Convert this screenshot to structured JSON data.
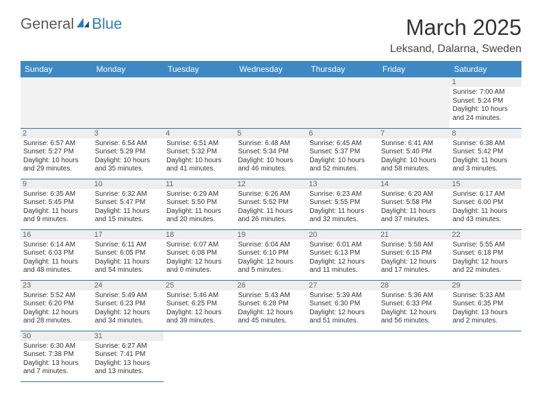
{
  "logo": {
    "text1": "General",
    "text2": "Blue"
  },
  "title": "March 2025",
  "location": "Leksand, Dalarna, Sweden",
  "colors": {
    "header_bg": "#3e89c4",
    "header_text": "#ffffff",
    "border": "#2f6fa8",
    "daynum_bg": "#eeeeee",
    "logo_blue": "#2f7bbf"
  },
  "days_of_week": [
    "Sunday",
    "Monday",
    "Tuesday",
    "Wednesday",
    "Thursday",
    "Friday",
    "Saturday"
  ],
  "weeks": [
    [
      null,
      null,
      null,
      null,
      null,
      null,
      {
        "n": "1",
        "sr": "Sunrise: 7:00 AM",
        "ss": "Sunset: 5:24 PM",
        "dl1": "Daylight: 10 hours",
        "dl2": "and 24 minutes."
      }
    ],
    [
      {
        "n": "2",
        "sr": "Sunrise: 6:57 AM",
        "ss": "Sunset: 5:27 PM",
        "dl1": "Daylight: 10 hours",
        "dl2": "and 29 minutes."
      },
      {
        "n": "3",
        "sr": "Sunrise: 6:54 AM",
        "ss": "Sunset: 5:29 PM",
        "dl1": "Daylight: 10 hours",
        "dl2": "and 35 minutes."
      },
      {
        "n": "4",
        "sr": "Sunrise: 6:51 AM",
        "ss": "Sunset: 5:32 PM",
        "dl1": "Daylight: 10 hours",
        "dl2": "and 41 minutes."
      },
      {
        "n": "5",
        "sr": "Sunrise: 6:48 AM",
        "ss": "Sunset: 5:34 PM",
        "dl1": "Daylight: 10 hours",
        "dl2": "and 46 minutes."
      },
      {
        "n": "6",
        "sr": "Sunrise: 6:45 AM",
        "ss": "Sunset: 5:37 PM",
        "dl1": "Daylight: 10 hours",
        "dl2": "and 52 minutes."
      },
      {
        "n": "7",
        "sr": "Sunrise: 6:41 AM",
        "ss": "Sunset: 5:40 PM",
        "dl1": "Daylight: 10 hours",
        "dl2": "and 58 minutes."
      },
      {
        "n": "8",
        "sr": "Sunrise: 6:38 AM",
        "ss": "Sunset: 5:42 PM",
        "dl1": "Daylight: 11 hours",
        "dl2": "and 3 minutes."
      }
    ],
    [
      {
        "n": "9",
        "sr": "Sunrise: 6:35 AM",
        "ss": "Sunset: 5:45 PM",
        "dl1": "Daylight: 11 hours",
        "dl2": "and 9 minutes."
      },
      {
        "n": "10",
        "sr": "Sunrise: 6:32 AM",
        "ss": "Sunset: 5:47 PM",
        "dl1": "Daylight: 11 hours",
        "dl2": "and 15 minutes."
      },
      {
        "n": "11",
        "sr": "Sunrise: 6:29 AM",
        "ss": "Sunset: 5:50 PM",
        "dl1": "Daylight: 11 hours",
        "dl2": "and 20 minutes."
      },
      {
        "n": "12",
        "sr": "Sunrise: 6:26 AM",
        "ss": "Sunset: 5:52 PM",
        "dl1": "Daylight: 11 hours",
        "dl2": "and 26 minutes."
      },
      {
        "n": "13",
        "sr": "Sunrise: 6:23 AM",
        "ss": "Sunset: 5:55 PM",
        "dl1": "Daylight: 11 hours",
        "dl2": "and 32 minutes."
      },
      {
        "n": "14",
        "sr": "Sunrise: 6:20 AM",
        "ss": "Sunset: 5:58 PM",
        "dl1": "Daylight: 11 hours",
        "dl2": "and 37 minutes."
      },
      {
        "n": "15",
        "sr": "Sunrise: 6:17 AM",
        "ss": "Sunset: 6:00 PM",
        "dl1": "Daylight: 11 hours",
        "dl2": "and 43 minutes."
      }
    ],
    [
      {
        "n": "16",
        "sr": "Sunrise: 6:14 AM",
        "ss": "Sunset: 6:03 PM",
        "dl1": "Daylight: 11 hours",
        "dl2": "and 48 minutes."
      },
      {
        "n": "17",
        "sr": "Sunrise: 6:11 AM",
        "ss": "Sunset: 6:05 PM",
        "dl1": "Daylight: 11 hours",
        "dl2": "and 54 minutes."
      },
      {
        "n": "18",
        "sr": "Sunrise: 6:07 AM",
        "ss": "Sunset: 6:08 PM",
        "dl1": "Daylight: 12 hours",
        "dl2": "and 0 minutes."
      },
      {
        "n": "19",
        "sr": "Sunrise: 6:04 AM",
        "ss": "Sunset: 6:10 PM",
        "dl1": "Daylight: 12 hours",
        "dl2": "and 5 minutes."
      },
      {
        "n": "20",
        "sr": "Sunrise: 6:01 AM",
        "ss": "Sunset: 6:13 PM",
        "dl1": "Daylight: 12 hours",
        "dl2": "and 11 minutes."
      },
      {
        "n": "21",
        "sr": "Sunrise: 5:58 AM",
        "ss": "Sunset: 6:15 PM",
        "dl1": "Daylight: 12 hours",
        "dl2": "and 17 minutes."
      },
      {
        "n": "22",
        "sr": "Sunrise: 5:55 AM",
        "ss": "Sunset: 6:18 PM",
        "dl1": "Daylight: 12 hours",
        "dl2": "and 22 minutes."
      }
    ],
    [
      {
        "n": "23",
        "sr": "Sunrise: 5:52 AM",
        "ss": "Sunset: 6:20 PM",
        "dl1": "Daylight: 12 hours",
        "dl2": "and 28 minutes."
      },
      {
        "n": "24",
        "sr": "Sunrise: 5:49 AM",
        "ss": "Sunset: 6:23 PM",
        "dl1": "Daylight: 12 hours",
        "dl2": "and 34 minutes."
      },
      {
        "n": "25",
        "sr": "Sunrise: 5:46 AM",
        "ss": "Sunset: 6:25 PM",
        "dl1": "Daylight: 12 hours",
        "dl2": "and 39 minutes."
      },
      {
        "n": "26",
        "sr": "Sunrise: 5:43 AM",
        "ss": "Sunset: 6:28 PM",
        "dl1": "Daylight: 12 hours",
        "dl2": "and 45 minutes."
      },
      {
        "n": "27",
        "sr": "Sunrise: 5:39 AM",
        "ss": "Sunset: 6:30 PM",
        "dl1": "Daylight: 12 hours",
        "dl2": "and 51 minutes."
      },
      {
        "n": "28",
        "sr": "Sunrise: 5:36 AM",
        "ss": "Sunset: 6:33 PM",
        "dl1": "Daylight: 12 hours",
        "dl2": "and 56 minutes."
      },
      {
        "n": "29",
        "sr": "Sunrise: 5:33 AM",
        "ss": "Sunset: 6:35 PM",
        "dl1": "Daylight: 13 hours",
        "dl2": "and 2 minutes."
      }
    ],
    [
      {
        "n": "30",
        "sr": "Sunrise: 6:30 AM",
        "ss": "Sunset: 7:38 PM",
        "dl1": "Daylight: 13 hours",
        "dl2": "and 7 minutes."
      },
      {
        "n": "31",
        "sr": "Sunrise: 6:27 AM",
        "ss": "Sunset: 7:41 PM",
        "dl1": "Daylight: 13 hours",
        "dl2": "and 13 minutes."
      },
      null,
      null,
      null,
      null,
      null
    ]
  ]
}
